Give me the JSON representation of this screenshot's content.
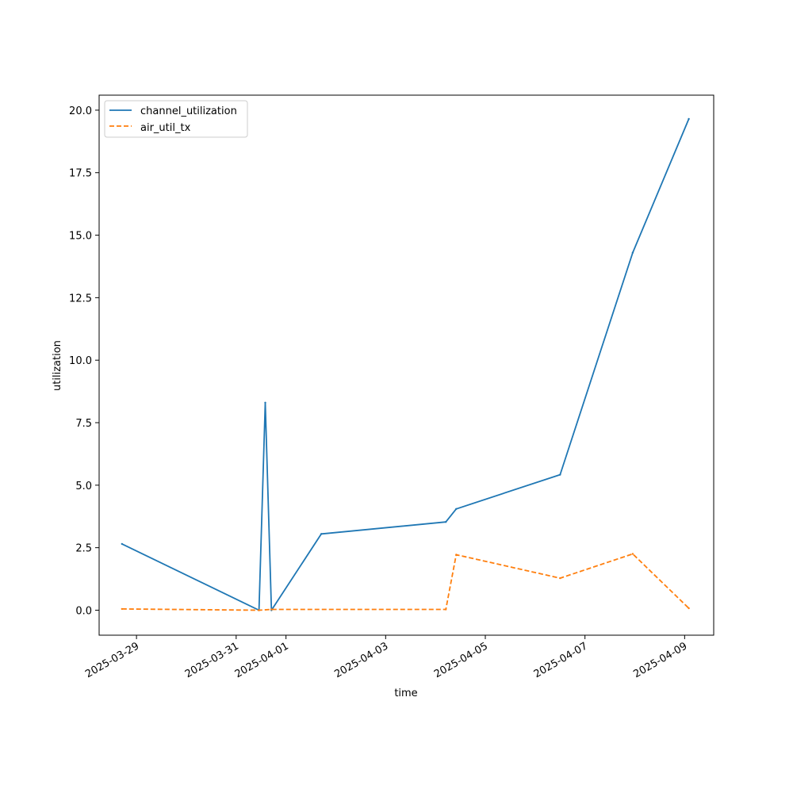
{
  "chart_data": {
    "type": "line",
    "title": "",
    "xlabel": "time",
    "ylabel": "utilization",
    "grid": false,
    "legend_position": "upper-left",
    "x_range": [
      "2025-03-28T06:00:00",
      "2025-04-09T14:00:00"
    ],
    "ylim": [
      -1.0,
      20.6
    ],
    "x_ticks": [
      "2025-03-29",
      "2025-03-31",
      "2025-04-01",
      "2025-04-03",
      "2025-04-05",
      "2025-04-07",
      "2025-04-09"
    ],
    "y_ticks": [
      "0.0",
      "2.5",
      "5.0",
      "7.5",
      "10.0",
      "12.5",
      "15.0",
      "17.5",
      "20.0"
    ],
    "series": [
      {
        "name": "channel_utilization",
        "color": "#1f77b4",
        "style": "solid",
        "points": [
          {
            "x": "2025-03-28T17:00:00",
            "y": 2.65
          },
          {
            "x": "2025-03-31T11:00:00",
            "y": 0.0
          },
          {
            "x": "2025-03-31T14:00:00",
            "y": 8.3
          },
          {
            "x": "2025-03-31T17:00:00",
            "y": 0.0
          },
          {
            "x": "2025-04-01T17:00:00",
            "y": 3.05
          },
          {
            "x": "2025-04-04T05:00:00",
            "y": 3.53
          },
          {
            "x": "2025-04-04T10:00:00",
            "y": 4.05
          },
          {
            "x": "2025-04-06T12:00:00",
            "y": 5.42
          },
          {
            "x": "2025-04-07T23:00:00",
            "y": 14.3
          },
          {
            "x": "2025-04-09T02:00:00",
            "y": 19.65
          }
        ]
      },
      {
        "name": "air_util_tx",
        "color": "#ff7f0e",
        "style": "dashed",
        "points": [
          {
            "x": "2025-03-28T17:00:00",
            "y": 0.05
          },
          {
            "x": "2025-03-31T11:00:00",
            "y": 0.0
          },
          {
            "x": "2025-03-31T17:00:00",
            "y": 0.03
          },
          {
            "x": "2025-04-04T05:00:00",
            "y": 0.03
          },
          {
            "x": "2025-04-04T10:00:00",
            "y": 2.22
          },
          {
            "x": "2025-04-06T12:00:00",
            "y": 1.28
          },
          {
            "x": "2025-04-07T23:00:00",
            "y": 2.25
          },
          {
            "x": "2025-04-09T02:00:00",
            "y": 0.08
          }
        ]
      }
    ]
  }
}
